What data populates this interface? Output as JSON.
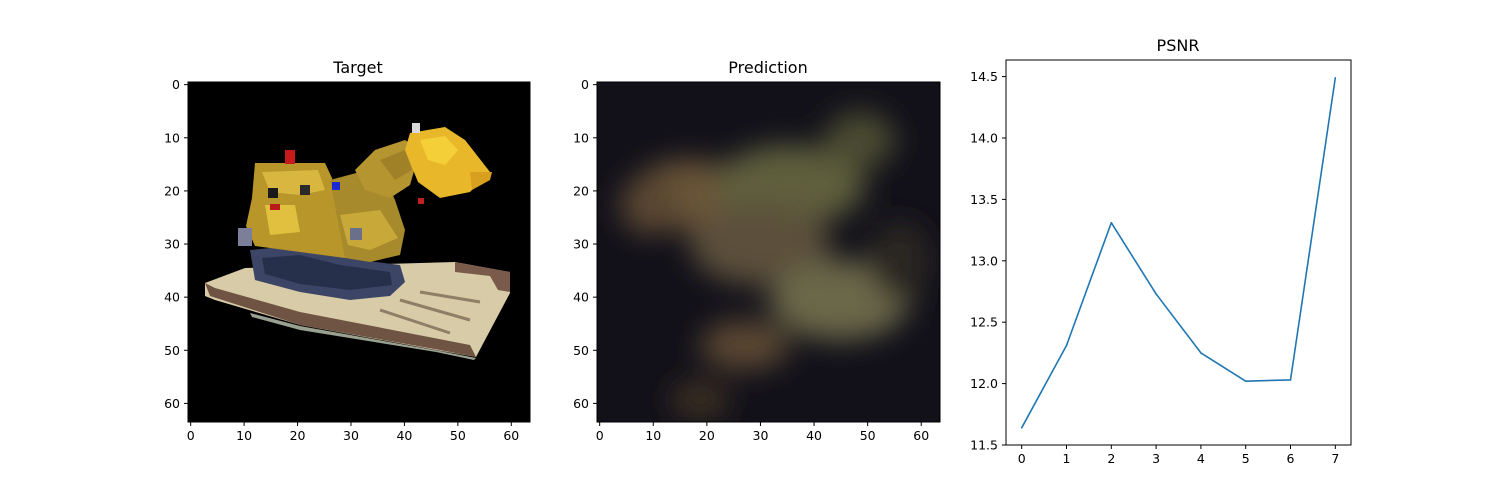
{
  "panels": [
    {
      "title": "Target",
      "content": "image",
      "xticks": [
        0,
        10,
        20,
        30,
        40,
        50,
        60
      ],
      "yticks": [
        0,
        10,
        20,
        30,
        40,
        50,
        60
      ],
      "extent": [
        0,
        64
      ]
    },
    {
      "title": "Prediction",
      "content": "image",
      "xticks": [
        0,
        10,
        20,
        30,
        40,
        50,
        60
      ],
      "yticks": [
        0,
        10,
        20,
        30,
        40,
        50,
        60
      ],
      "extent": [
        0,
        64
      ]
    }
  ],
  "chart_data": {
    "type": "line",
    "title": "PSNR",
    "xlabel": "",
    "ylabel": "",
    "x": [
      0,
      1,
      2,
      3,
      4,
      5,
      6,
      7
    ],
    "series": [
      {
        "values": [
          11.64,
          12.31,
          13.31,
          12.73,
          12.25,
          12.02,
          12.03,
          14.49
        ],
        "color": "#1f77b4"
      }
    ],
    "xticks": [
      0,
      1,
      2,
      3,
      4,
      5,
      6,
      7
    ],
    "yticks": [
      "11.5",
      "12.0",
      "12.5",
      "13.0",
      "13.5",
      "14.0",
      "14.5"
    ],
    "xlim": [
      -0.35,
      7.35
    ],
    "ylim": [
      11.5,
      14.635
    ],
    "grid": false
  }
}
